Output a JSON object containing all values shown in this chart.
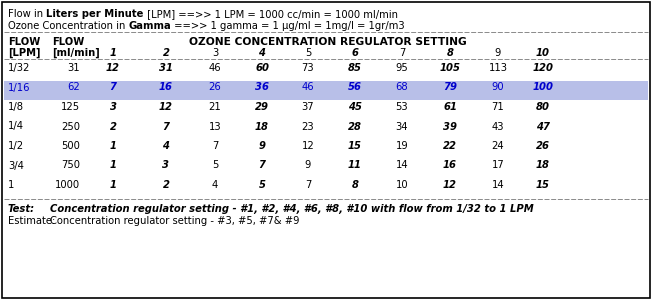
{
  "header_line1": [
    "Flow in ",
    "Liters per Minute",
    " [LPM] ==>> 1 LPM = 1000 cc/min = 1000 ml/min"
  ],
  "header_line2": [
    "Ozone Concentration in ",
    "Gamma",
    " ==>> 1 gamma = 1 μg/ml = 1mg/l = 1gr/m3"
  ],
  "col_header_main": "OZONE CONCENTRATION REGULATOR SETTING",
  "num_headers": [
    "1",
    "2",
    "3",
    "4",
    "5",
    "6",
    "7",
    "8",
    "9",
    "10"
  ],
  "rows": [
    {
      "flow_lpm": "1/32",
      "flow_ml": "31",
      "vals": [
        "12",
        "31",
        "46",
        "60",
        "73",
        "85",
        "95",
        "105",
        "113",
        "120"
      ],
      "highlight": false
    },
    {
      "flow_lpm": "1/16",
      "flow_ml": "62",
      "vals": [
        "7",
        "16",
        "26",
        "36",
        "46",
        "56",
        "68",
        "79",
        "90",
        "100"
      ],
      "highlight": true
    },
    {
      "flow_lpm": "1/8",
      "flow_ml": "125",
      "vals": [
        "3",
        "12",
        "21",
        "29",
        "37",
        "45",
        "53",
        "61",
        "71",
        "80"
      ],
      "highlight": false
    },
    {
      "flow_lpm": "1/4",
      "flow_ml": "250",
      "vals": [
        "2",
        "7",
        "13",
        "18",
        "23",
        "28",
        "34",
        "39",
        "43",
        "47"
      ],
      "highlight": false
    },
    {
      "flow_lpm": "1/2",
      "flow_ml": "500",
      "vals": [
        "1",
        "4",
        "7",
        "9",
        "12",
        "15",
        "19",
        "22",
        "24",
        "26"
      ],
      "highlight": false
    },
    {
      "flow_lpm": "3/4",
      "flow_ml": "750",
      "vals": [
        "1",
        "3",
        "5",
        "7",
        "9",
        "11",
        "14",
        "16",
        "17",
        "18"
      ],
      "highlight": false
    },
    {
      "flow_lpm": "1",
      "flow_ml": "1000",
      "vals": [
        "1",
        "2",
        "4",
        "5",
        "7",
        "8",
        "10",
        "12",
        "14",
        "15"
      ],
      "highlight": false
    }
  ],
  "bold_val_cols": [
    0,
    1,
    3,
    5,
    7,
    9
  ],
  "highlight_color": "#b8bfe8",
  "border_color": "#000000",
  "text_color_normal": "#000000",
  "text_color_highlight": "#0000cc",
  "bg_color": "#ffffff",
  "footer_test_bold": "Concentration regulator setting - #1, #2, #4, #6, #8, #10 with flow from 1/32 to 1 LPM",
  "footer_estimate": "Concentration regulator setting - #3, #5, #7& #9"
}
